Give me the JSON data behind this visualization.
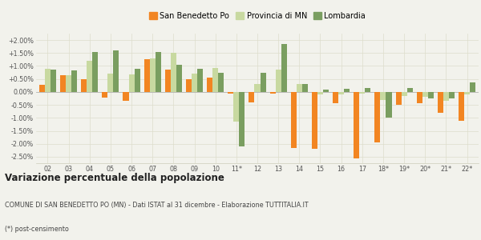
{
  "years": [
    "02",
    "03",
    "04",
    "05",
    "06",
    "07",
    "08",
    "09",
    "10",
    "11*",
    "12",
    "13",
    "14",
    "15",
    "16",
    "17",
    "18*",
    "19*",
    "20*",
    "21*",
    "22*"
  ],
  "san_benedetto": [
    0.27,
    0.65,
    0.5,
    -0.22,
    -0.35,
    1.25,
    0.85,
    0.5,
    0.55,
    -0.05,
    -0.4,
    -0.05,
    -2.15,
    -2.2,
    -0.45,
    -2.55,
    -1.95,
    -0.5,
    -0.45,
    -0.8,
    -1.1
  ],
  "provincia_mn": [
    0.9,
    0.65,
    1.2,
    0.7,
    0.68,
    1.3,
    1.5,
    0.7,
    0.93,
    -1.15,
    0.3,
    0.85,
    0.3,
    -0.1,
    -0.1,
    -0.05,
    -0.3,
    -0.15,
    -0.2,
    -0.35,
    -0.1
  ],
  "lombardia": [
    0.85,
    0.82,
    1.55,
    1.6,
    0.88,
    1.55,
    1.05,
    0.88,
    0.75,
    -2.1,
    0.75,
    1.85,
    0.3,
    0.1,
    0.12,
    0.15,
    -1.0,
    0.15,
    -0.25,
    -0.25,
    0.38
  ],
  "color_san": "#f28522",
  "color_prov": "#c8d9a0",
  "color_lomb": "#7a9e60",
  "title1": "Variazione percentuale della popolazione",
  "title2": "COMUNE DI SAN BENEDETTO PO (MN) - Dati ISTAT al 31 dicembre - Elaborazione TUTTITALIA.IT",
  "title3": "(*) post-censimento",
  "bg_color": "#f2f2ec",
  "ylim": [
    -2.75,
    2.25
  ],
  "yticks": [
    -2.5,
    -2.0,
    -1.5,
    -1.0,
    -0.5,
    0.0,
    0.5,
    1.0,
    1.5,
    2.0
  ],
  "ytick_labels": [
    "-2.50%",
    "-2.00%",
    "-1.50%",
    "-1.00%",
    "-0.50%",
    "0.00%",
    "+0.50%",
    "+1.00%",
    "+1.50%",
    "+2.00%"
  ]
}
